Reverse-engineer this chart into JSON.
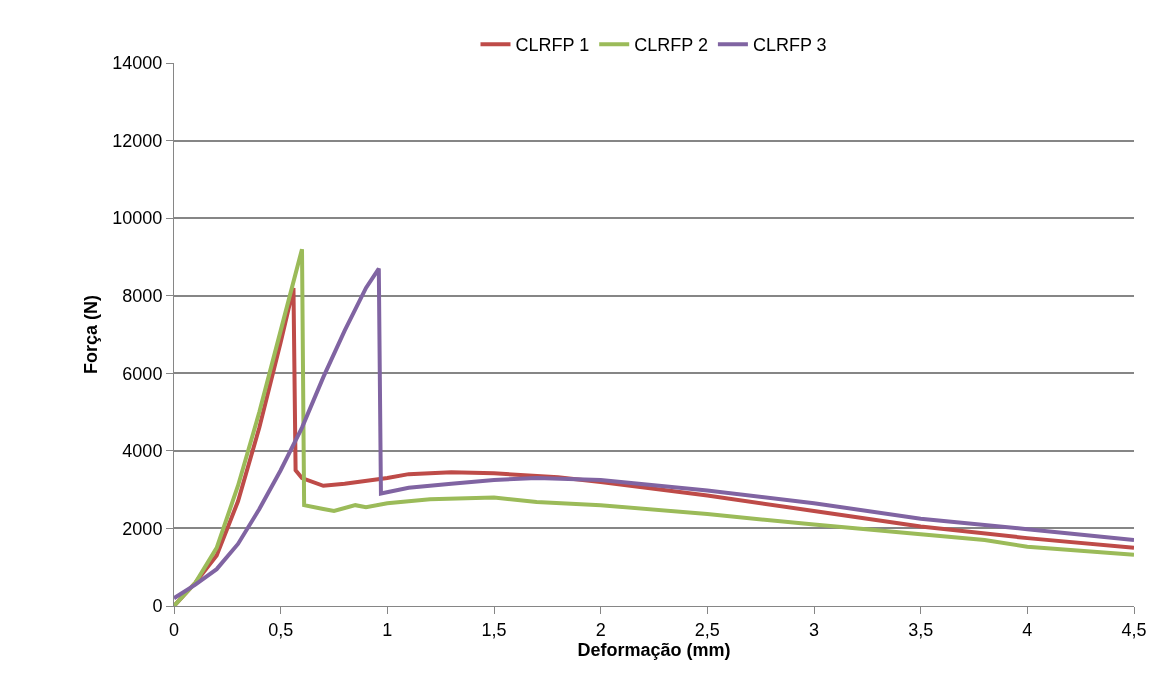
{
  "chart_data": {
    "type": "line",
    "xlabel": "Deformação (mm)",
    "ylabel": "Força (N)",
    "xlim": [
      0,
      4.5
    ],
    "xticks": [
      0,
      {
        "value": 0.5,
        "label": "0,5"
      },
      1,
      {
        "value": 1.5,
        "label": "1,5"
      },
      2,
      {
        "value": 2.5,
        "label": "2,5"
      },
      3,
      {
        "value": 3.5,
        "label": "3,5"
      },
      4,
      {
        "value": 4.5,
        "label": "4,5"
      }
    ],
    "ylim": [
      0,
      14000
    ],
    "yticks": [
      0,
      2000,
      4000,
      6000,
      8000,
      10000,
      12000,
      14000
    ],
    "grid": "y",
    "legend": "top",
    "marker": "none",
    "line_style": "solid",
    "series": [
      {
        "name": "CLRFP 1",
        "color": "#be4b48",
        "x": [
          0,
          0.1,
          0.2,
          0.3,
          0.4,
          0.5,
          0.56,
          0.57,
          0.6,
          0.7,
          0.8,
          1,
          1.1,
          1.3,
          1.5,
          1.8,
          2,
          2.5,
          3,
          3.5,
          4,
          4.5
        ],
        "values": [
          0,
          600,
          1300,
          2700,
          4600,
          6800,
          8200,
          3500,
          3300,
          3100,
          3150,
          3300,
          3400,
          3450,
          3420,
          3320,
          3200,
          2850,
          2450,
          2050,
          1750,
          1500
        ]
      },
      {
        "name": "CLRFP 2",
        "color": "#9bbb59",
        "x": [
          0,
          0.1,
          0.2,
          0.3,
          0.4,
          0.5,
          0.6,
          0.61,
          0.7,
          0.75,
          0.85,
          0.9,
          1,
          1.2,
          1.5,
          1.7,
          2,
          2.5,
          3,
          3.5,
          3.8,
          4,
          4.5
        ],
        "values": [
          0,
          600,
          1500,
          3100,
          5000,
          7100,
          9200,
          2600,
          2500,
          2450,
          2600,
          2550,
          2650,
          2750,
          2800,
          2680,
          2600,
          2370,
          2100,
          1850,
          1700,
          1530,
          1320
        ]
      },
      {
        "name": "CLRFP 3",
        "color": "#8064a2",
        "x": [
          0,
          0.1,
          0.2,
          0.3,
          0.4,
          0.5,
          0.6,
          0.7,
          0.8,
          0.9,
          0.96,
          0.97,
          1.1,
          1.3,
          1.5,
          1.7,
          2,
          2.5,
          3,
          3.5,
          4,
          4.5
        ],
        "values": [
          200,
          550,
          950,
          1600,
          2500,
          3500,
          4600,
          5900,
          7100,
          8200,
          8700,
          2900,
          3050,
          3150,
          3250,
          3300,
          3250,
          2980,
          2650,
          2250,
          1980,
          1700
        ]
      }
    ]
  }
}
